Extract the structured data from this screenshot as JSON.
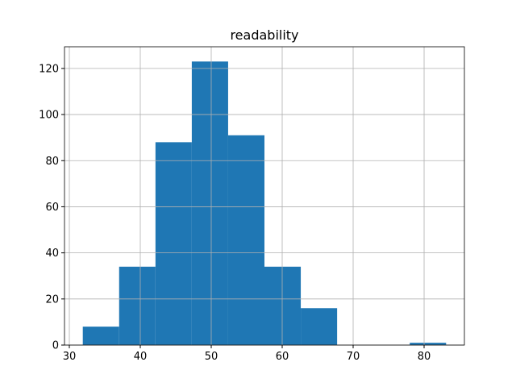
{
  "chart_data": {
    "type": "histogram",
    "title": "readability",
    "bins": [
      31.9,
      37.02,
      42.14,
      47.26,
      52.38,
      57.5,
      62.62,
      67.74,
      72.86,
      77.98,
      83.1
    ],
    "values": [
      8,
      34,
      88,
      123,
      91,
      34,
      16,
      0,
      0,
      1
    ],
    "color": "#1f77b4",
    "xlim": [
      29.32,
      85.68
    ],
    "xticks": [
      30,
      40,
      50,
      60,
      70,
      80
    ],
    "ylim": [
      0,
      129.4
    ],
    "yticks": [
      0,
      20,
      40,
      60,
      80,
      100,
      120
    ],
    "grid": true
  }
}
